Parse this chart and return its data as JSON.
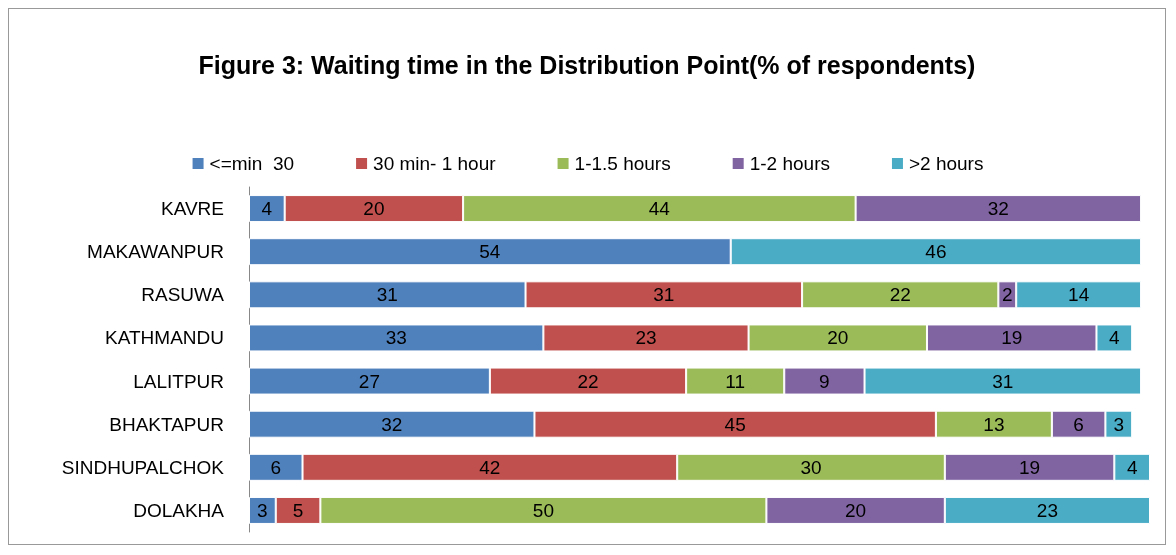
{
  "chart_data": {
    "type": "bar",
    "orientation": "horizontal",
    "stacked": true,
    "data_labels": true,
    "legend": "top",
    "title": "Figure 3: Waiting time in the Distribution Point(% of respondents)",
    "categories": [
      "KAVRE",
      "MAKAWANPUR",
      "RASUWA",
      "KATHMANDU",
      "LALITPUR",
      "BHAKTAPUR",
      "SINDHUPALCHOK",
      "DOLAKHA"
    ],
    "series": [
      {
        "name": "<=min  30",
        "color": "#4f81bd",
        "values": [
          4,
          54,
          31,
          33,
          27,
          32,
          6,
          3
        ]
      },
      {
        "name": "30 min- 1 hour",
        "color": "#c0504d",
        "values": [
          20,
          null,
          31,
          23,
          22,
          45,
          42,
          5
        ]
      },
      {
        "name": "1-1.5 hours",
        "color": "#9bbb59",
        "values": [
          44,
          null,
          22,
          20,
          11,
          13,
          30,
          50
        ]
      },
      {
        "name": "1-2 hours",
        "color": "#8064a2",
        "values": [
          32,
          null,
          2,
          19,
          9,
          6,
          19,
          20
        ]
      },
      {
        "name": ">2 hours",
        "color": "#4bacc6",
        "values": [
          null,
          46,
          14,
          4,
          31,
          3,
          4,
          23
        ]
      }
    ]
  }
}
